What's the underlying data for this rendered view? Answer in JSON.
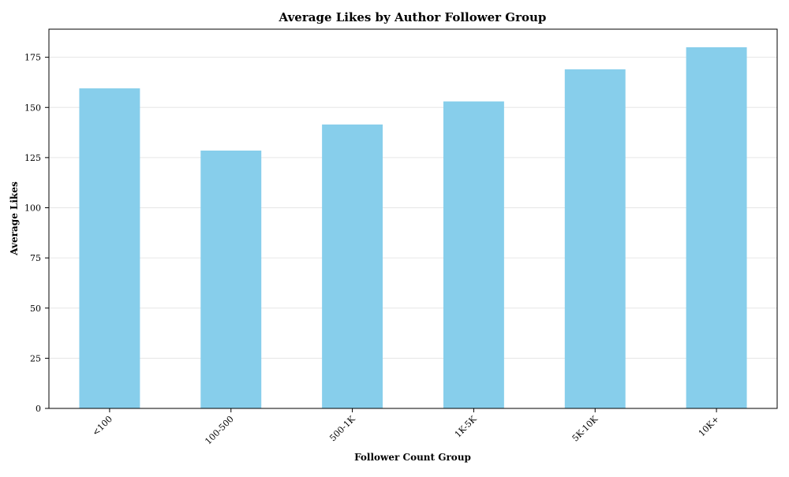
{
  "chart_data": {
    "type": "bar",
    "title": "Average Likes by Author Follower Group",
    "xlabel": "Follower Count Group",
    "ylabel": "Average Likes",
    "categories": [
      "<100",
      "100-500",
      "500-1K",
      "1K-5K",
      "5K-10K",
      "10K+"
    ],
    "values": [
      159.5,
      128.5,
      141.5,
      153,
      169,
      180
    ],
    "yticks": [
      0,
      25,
      50,
      75,
      100,
      125,
      150,
      175
    ],
    "ylim": [
      0,
      189
    ],
    "grid": "y",
    "bar_color": "#87CEEB",
    "x_tick_rotation": -45
  }
}
